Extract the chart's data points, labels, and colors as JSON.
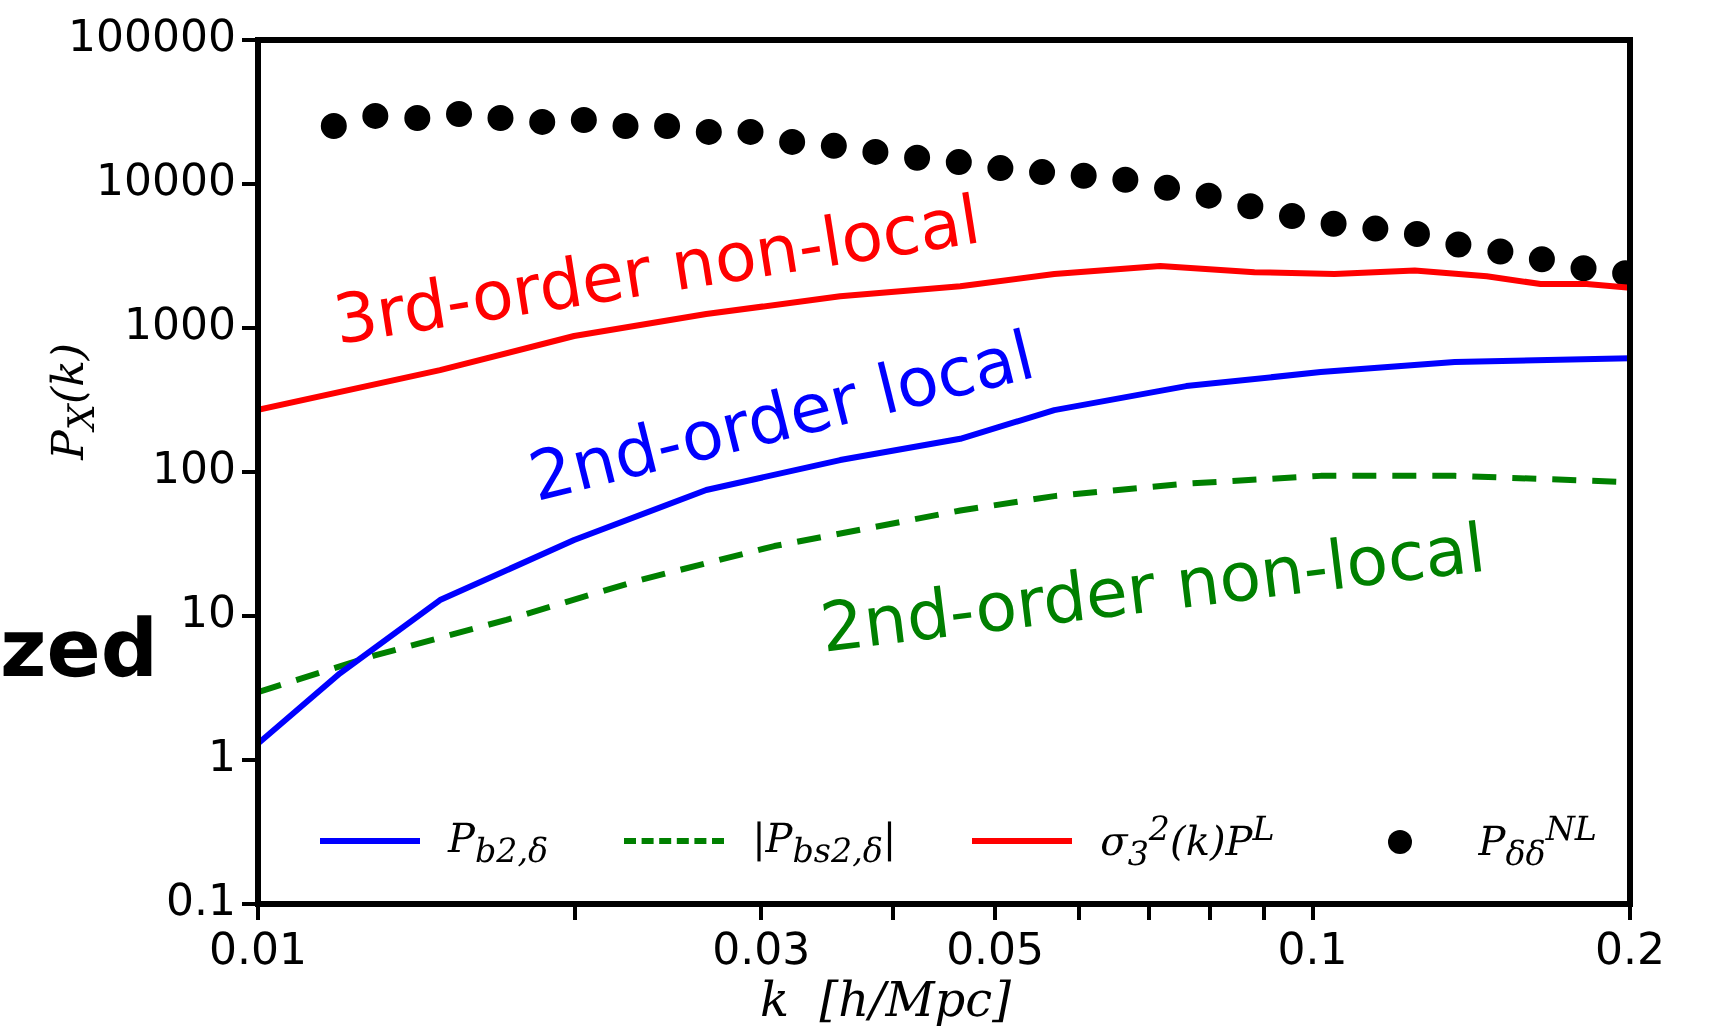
{
  "chart_data": {
    "type": "line",
    "xlabel": "k  [h/Mpc]",
    "ylabel": "P$_{X}$(k)",
    "log": "xy",
    "grid": false,
    "legend": "bottom",
    "xlim": [
      0.01,
      0.2
    ],
    "ylim": [
      0.1,
      100000
    ],
    "xticks": [
      0.01,
      {
        "value": 0.02,
        "label": null
      },
      0.03,
      {
        "value": 0.04,
        "label": null
      },
      0.05,
      {
        "value": 0.06,
        "label": null
      },
      {
        "value": 0.07,
        "label": null
      },
      {
        "value": 0.08,
        "label": null
      },
      {
        "value": 0.09,
        "label": null
      },
      0.1,
      0.2
    ],
    "yticks": [
      0.1,
      1,
      10,
      100,
      1000,
      10000,
      100000
    ],
    "series": [
      {
        "name": "P$_{b2,δ}$",
        "type": "line",
        "color": "#0000ff",
        "line_style": "solid",
        "x": [
          0.01,
          0.01196,
          0.01488,
          0.01994,
          0.02661,
          0.03565,
          0.04634,
          0.0569,
          0.0759,
          0.1018,
          0.1364,
          0.2
        ],
        "values": [
          1.3,
          4.0,
          12.9,
          33.7,
          75,
          121,
          170,
          269,
          395,
          494,
          580,
          617
        ]
      },
      {
        "name": "|P$_{bs2,δ}$|",
        "type": "line",
        "color": "#008000",
        "line_style": "dashed",
        "x": [
          0.01,
          0.01288,
          0.0172,
          0.02304,
          0.03088,
          0.04634,
          0.0569,
          0.0759,
          0.1018,
          0.1364,
          0.2
        ],
        "values": [
          2.96,
          5.3,
          9.4,
          17.8,
          30.6,
          54,
          68,
          83,
          94,
          94,
          85
        ]
      },
      {
        "name": "σ$_{3}$$^{2}$(k)P$^{L}$",
        "type": "line",
        "color": "#ff0000",
        "line_style": "solid",
        "x": [
          0.01,
          0.01488,
          0.01994,
          0.02661,
          0.03565,
          0.04634,
          0.0569,
          0.07171,
          0.0881,
          0.1049,
          0.125,
          0.1463,
          0.1645,
          0.182,
          0.2
        ],
        "values": [
          270,
          510,
          880,
          1250,
          1660,
          1950,
          2370,
          2700,
          2440,
          2370,
          2510,
          2290,
          2020,
          2020,
          1900
        ]
      },
      {
        "name": "P$_{δδ}$$^{NL}$",
        "type": "scatter",
        "marker": "circle",
        "color": "#000000",
        "x": [
          0.0118,
          0.01292,
          0.01416,
          0.01551,
          0.01698,
          0.0186,
          0.02037,
          0.02231,
          0.02443,
          0.02676,
          0.02931,
          0.0321,
          0.03516,
          0.0385,
          0.04217,
          0.04619,
          0.05058,
          0.0554,
          0.06067,
          0.06645,
          0.07278,
          0.07971,
          0.0873,
          0.09561,
          0.1047,
          0.1147,
          0.1256,
          0.1375,
          0.1507,
          0.165,
          0.1807,
          0.1979
        ],
        "values": [
          25300,
          29700,
          28700,
          30600,
          28700,
          27000,
          27800,
          25300,
          25300,
          23000,
          23000,
          19600,
          18400,
          16700,
          15200,
          14200,
          12900,
          12100,
          11400,
          10700,
          9400,
          8300,
          7000,
          6000,
          5300,
          4900,
          4500,
          3800,
          3400,
          3000,
          2600,
          2400
        ]
      }
    ],
    "annotations": [
      {
        "text": "3rd-order non-local",
        "x": 0.0243,
        "y": 1120
      },
      {
        "text": "2nd-order local",
        "x": 0.0323,
        "y": 103
      },
      {
        "text": "2nd-order non-local",
        "x": 0.0687,
        "y": 77
      },
      "zed"
    ]
  }
}
